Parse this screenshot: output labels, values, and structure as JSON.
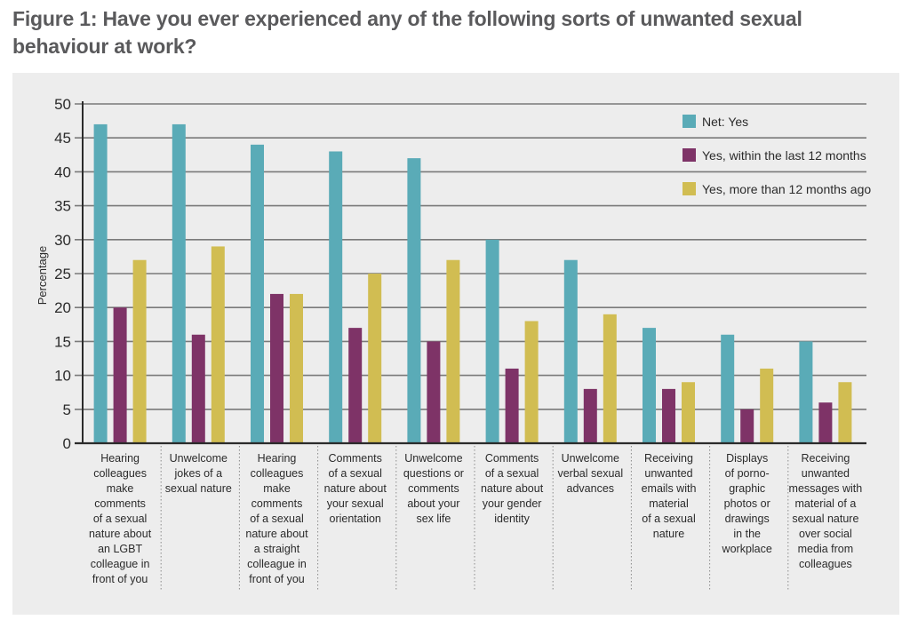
{
  "title": "Figure 1: Have you ever experienced any of the following sorts of unwanted sexual behaviour at work?",
  "chart_data": {
    "type": "bar",
    "title": "Figure 1: Have you ever experienced any of the following sorts of unwanted sexual behaviour at work?",
    "xlabel": "",
    "ylabel": "Percentage",
    "ylim": [
      0,
      50
    ],
    "yticks": [
      0,
      5,
      10,
      15,
      20,
      25,
      30,
      35,
      40,
      45,
      50
    ],
    "grid": true,
    "legend_position": "top-right",
    "categories": [
      [
        "Hearing",
        "colleagues",
        "make",
        "comments",
        "of a sexual",
        "nature about",
        "an LGBT",
        "colleague in",
        "front of you"
      ],
      [
        "Unwelcome",
        "jokes of a",
        "sexual nature"
      ],
      [
        "Hearing",
        "colleagues",
        "make",
        "comments",
        "of a sexual",
        "nature about",
        "a straight",
        "colleague in",
        "front of you"
      ],
      [
        "Comments",
        "of a sexual",
        "nature about",
        "your sexual",
        "orientation"
      ],
      [
        "Unwelcome",
        "questions or",
        "comments",
        "about your",
        "sex life"
      ],
      [
        "Comments",
        "of a sexual",
        "nature about",
        "your gender",
        "identity"
      ],
      [
        "Unwelcome",
        "verbal sexual",
        "advances"
      ],
      [
        "Receiving",
        "unwanted",
        "emails with",
        "material",
        "of a sexual",
        "nature"
      ],
      [
        "Displays",
        "of porno-",
        "graphic",
        "photos or",
        "drawings",
        "in the",
        "workplace"
      ],
      [
        "Receiving",
        "unwanted",
        "messages with",
        "material of a",
        "sexual nature",
        "over social",
        "media from",
        "colleagues"
      ]
    ],
    "series": [
      {
        "name": "Net: Yes",
        "color": "#5aabb7",
        "values": [
          47,
          47,
          44,
          43,
          42,
          30,
          27,
          17,
          16,
          15
        ]
      },
      {
        "name": "Yes, within the last 12 months",
        "color": "#7e3367",
        "values": [
          20,
          16,
          22,
          17,
          15,
          11,
          8,
          8,
          5,
          6
        ]
      },
      {
        "name": "Yes, more than 12 months ago",
        "color": "#d1bd52",
        "values": [
          27,
          29,
          22,
          25,
          27,
          18,
          19,
          9,
          11,
          9
        ]
      }
    ]
  }
}
